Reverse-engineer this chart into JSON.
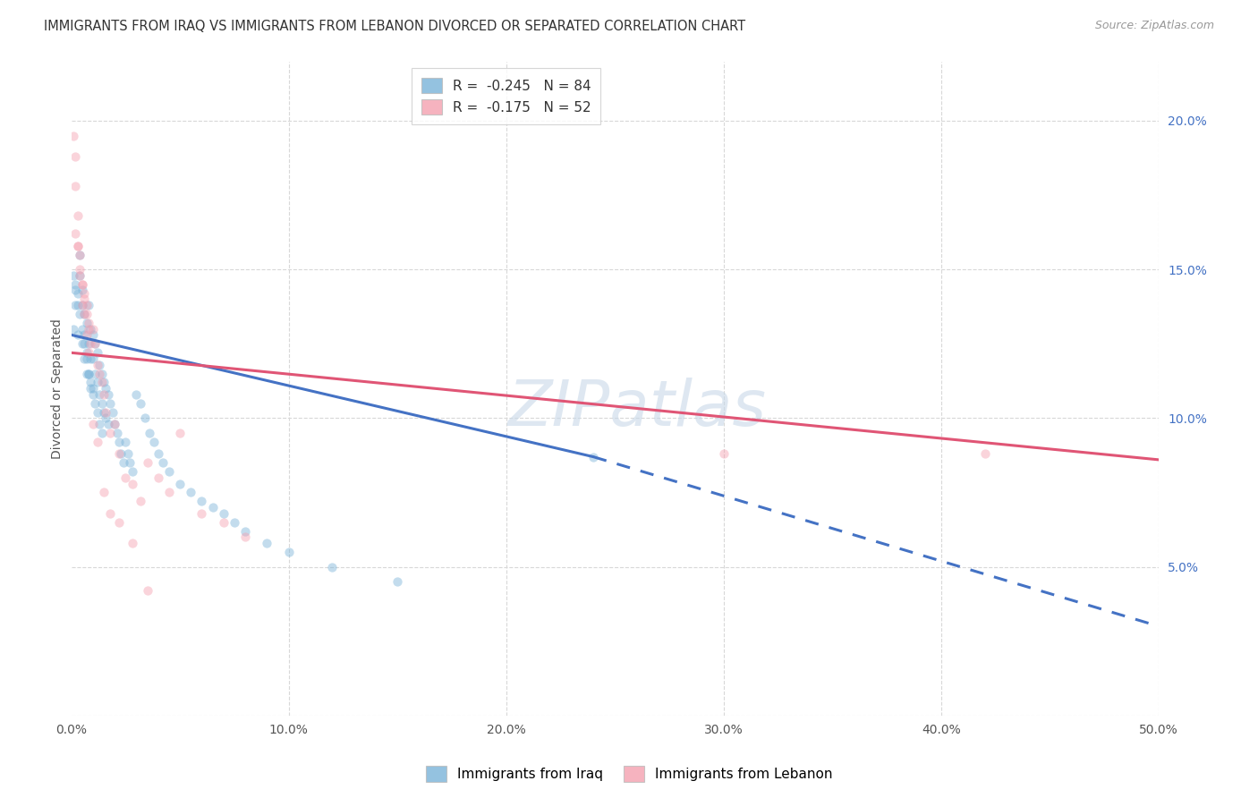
{
  "title": "IMMIGRANTS FROM IRAQ VS IMMIGRANTS FROM LEBANON DIVORCED OR SEPARATED CORRELATION CHART",
  "source_text": "Source: ZipAtlas.com",
  "ylabel": "Divorced or Separated",
  "watermark": "ZIPatlas",
  "xlim": [
    0.0,
    0.5
  ],
  "ylim": [
    0.0,
    0.22
  ],
  "xticks": [
    0.0,
    0.1,
    0.2,
    0.3,
    0.4,
    0.5
  ],
  "xtick_labels": [
    "0.0%",
    "10.0%",
    "20.0%",
    "30.0%",
    "40.0%",
    "50.0%"
  ],
  "yticks_right": [
    0.05,
    0.1,
    0.15,
    0.2
  ],
  "ytick_labels_right": [
    "5.0%",
    "10.0%",
    "15.0%",
    "20.0%"
  ],
  "iraq_color": "#7ab3d9",
  "lebanon_color": "#f4a0b0",
  "iraq_R": -0.245,
  "iraq_N": 84,
  "lebanon_R": -0.175,
  "lebanon_N": 52,
  "legend_label_iraq": "Immigrants from Iraq",
  "legend_label_lebanon": "Immigrants from Lebanon",
  "iraq_scatter_x": [
    0.001,
    0.002,
    0.002,
    0.003,
    0.003,
    0.004,
    0.004,
    0.005,
    0.005,
    0.005,
    0.006,
    0.006,
    0.006,
    0.007,
    0.007,
    0.007,
    0.008,
    0.008,
    0.008,
    0.009,
    0.009,
    0.009,
    0.01,
    0.01,
    0.01,
    0.011,
    0.011,
    0.012,
    0.012,
    0.013,
    0.013,
    0.014,
    0.014,
    0.015,
    0.015,
    0.016,
    0.016,
    0.017,
    0.017,
    0.018,
    0.019,
    0.02,
    0.021,
    0.022,
    0.023,
    0.024,
    0.025,
    0.026,
    0.027,
    0.028,
    0.03,
    0.032,
    0.034,
    0.036,
    0.038,
    0.04,
    0.042,
    0.045,
    0.05,
    0.055,
    0.06,
    0.065,
    0.07,
    0.075,
    0.08,
    0.09,
    0.1,
    0.12,
    0.15,
    0.24,
    0.001,
    0.002,
    0.003,
    0.004,
    0.005,
    0.006,
    0.007,
    0.008,
    0.009,
    0.01,
    0.011,
    0.012,
    0.013,
    0.014
  ],
  "iraq_scatter_y": [
    0.13,
    0.138,
    0.145,
    0.142,
    0.128,
    0.155,
    0.148,
    0.143,
    0.138,
    0.125,
    0.135,
    0.128,
    0.12,
    0.132,
    0.122,
    0.115,
    0.138,
    0.125,
    0.115,
    0.13,
    0.12,
    0.112,
    0.128,
    0.12,
    0.11,
    0.125,
    0.115,
    0.122,
    0.112,
    0.118,
    0.108,
    0.115,
    0.105,
    0.112,
    0.102,
    0.11,
    0.1,
    0.108,
    0.098,
    0.105,
    0.102,
    0.098,
    0.095,
    0.092,
    0.088,
    0.085,
    0.092,
    0.088,
    0.085,
    0.082,
    0.108,
    0.105,
    0.1,
    0.095,
    0.092,
    0.088,
    0.085,
    0.082,
    0.078,
    0.075,
    0.072,
    0.07,
    0.068,
    0.065,
    0.062,
    0.058,
    0.055,
    0.05,
    0.045,
    0.087,
    0.148,
    0.143,
    0.138,
    0.135,
    0.13,
    0.125,
    0.12,
    0.115,
    0.11,
    0.108,
    0.105,
    0.102,
    0.098,
    0.095
  ],
  "lebanon_scatter_x": [
    0.001,
    0.002,
    0.002,
    0.003,
    0.003,
    0.004,
    0.004,
    0.005,
    0.005,
    0.006,
    0.006,
    0.007,
    0.007,
    0.008,
    0.008,
    0.009,
    0.01,
    0.011,
    0.012,
    0.013,
    0.014,
    0.015,
    0.016,
    0.018,
    0.02,
    0.022,
    0.025,
    0.028,
    0.032,
    0.035,
    0.04,
    0.045,
    0.05,
    0.06,
    0.07,
    0.08,
    0.002,
    0.003,
    0.004,
    0.005,
    0.006,
    0.007,
    0.008,
    0.01,
    0.012,
    0.015,
    0.018,
    0.022,
    0.028,
    0.035,
    0.3,
    0.42
  ],
  "lebanon_scatter_y": [
    0.195,
    0.188,
    0.178,
    0.168,
    0.158,
    0.155,
    0.148,
    0.145,
    0.138,
    0.142,
    0.135,
    0.138,
    0.128,
    0.132,
    0.122,
    0.125,
    0.13,
    0.125,
    0.118,
    0.115,
    0.112,
    0.108,
    0.102,
    0.095,
    0.098,
    0.088,
    0.08,
    0.078,
    0.072,
    0.085,
    0.08,
    0.075,
    0.095,
    0.068,
    0.065,
    0.06,
    0.162,
    0.158,
    0.15,
    0.145,
    0.14,
    0.135,
    0.13,
    0.098,
    0.092,
    0.075,
    0.068,
    0.065,
    0.058,
    0.042,
    0.088,
    0.088
  ],
  "iraq_solid_trendline_x": [
    0.0,
    0.24
  ],
  "iraq_solid_trendline_y": [
    0.128,
    0.087
  ],
  "iraq_dashed_trendline_x": [
    0.24,
    0.5
  ],
  "iraq_dashed_trendline_y": [
    0.087,
    0.03
  ],
  "lebanon_trendline_x": [
    0.0,
    0.5
  ],
  "lebanon_trendline_y": [
    0.122,
    0.086
  ],
  "title_fontsize": 10.5,
  "axis_label_fontsize": 10,
  "tick_fontsize": 10,
  "legend_fontsize": 11,
  "source_fontsize": 9,
  "watermark_fontsize": 52,
  "watermark_color": "#c8d8e8",
  "watermark_alpha": 0.6,
  "right_tick_color": "#4472c4",
  "background_color": "#ffffff",
  "grid_color": "#d8d8d8",
  "scatter_size": 55,
  "scatter_alpha": 0.45,
  "trendline_linewidth": 2.2,
  "iraq_trendline_color": "#4472c4",
  "lebanon_trendline_color": "#e05575"
}
